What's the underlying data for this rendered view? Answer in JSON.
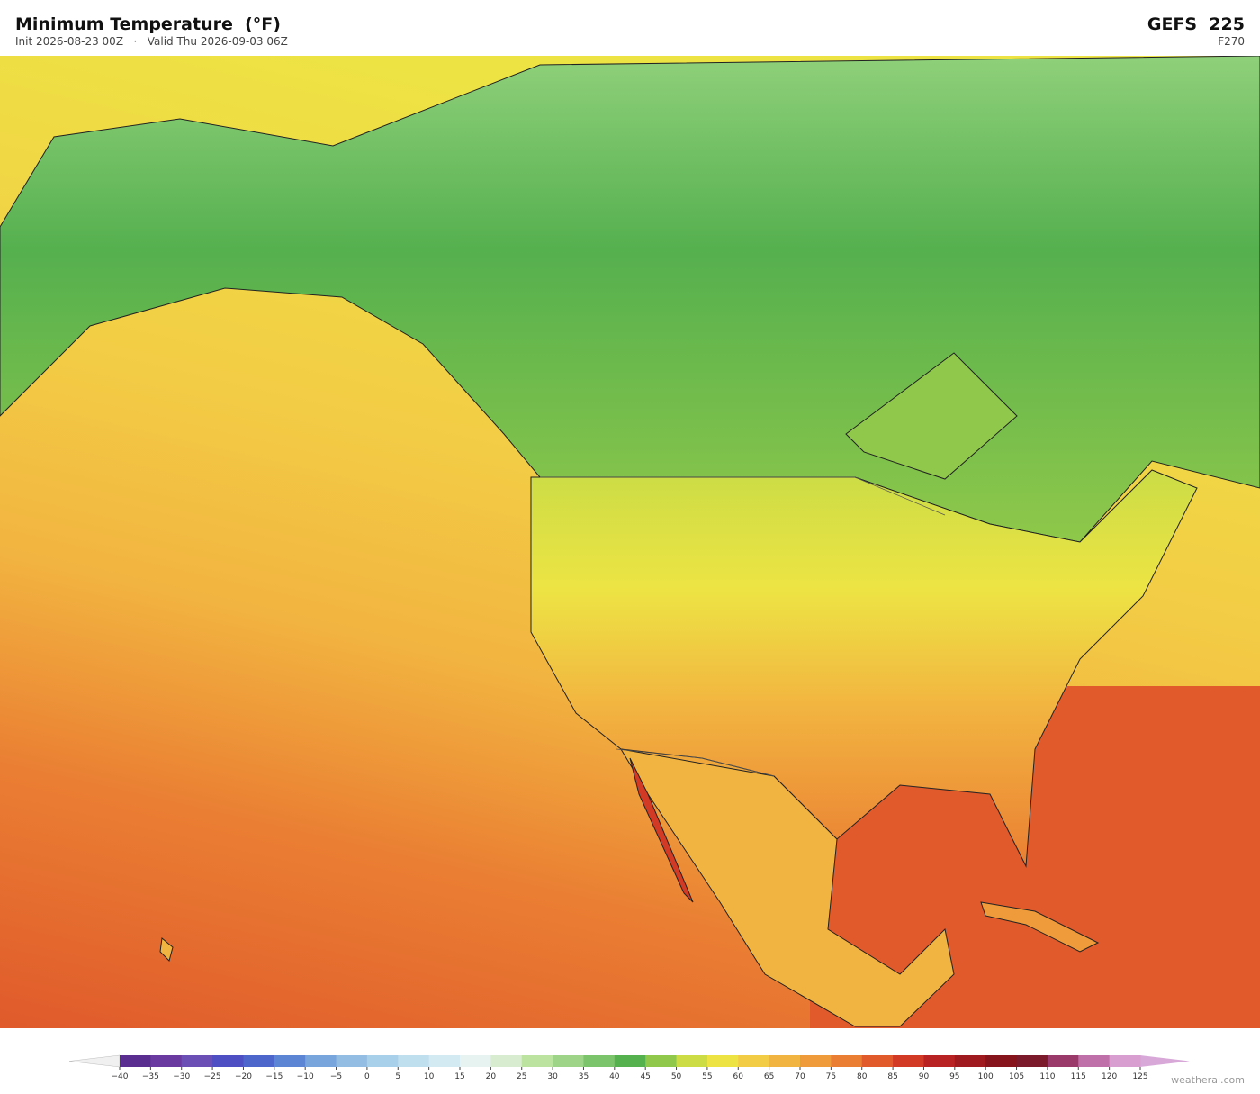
{
  "header": {
    "title": "Minimum Temperature  (°F)",
    "subtitle": "Init 2026-08-23 00Z   ·   Valid Thu 2026-09-03 06Z",
    "model": "GEFS  225",
    "forecast_hour": "F270"
  },
  "colorbar": {
    "ticks": [
      "−40",
      "−35",
      "−30",
      "−25",
      "−20",
      "−15",
      "−10",
      "−5",
      "0",
      "5",
      "10",
      "15",
      "20",
      "25",
      "30",
      "35",
      "40",
      "45",
      "50",
      "55",
      "60",
      "65",
      "70",
      "75",
      "80",
      "85",
      "90",
      "95",
      "100",
      "105",
      "110",
      "115",
      "120",
      "125"
    ],
    "colors": [
      "#5a2d91",
      "#6a3aa0",
      "#6b4fb5",
      "#4f4fc4",
      "#4c66cc",
      "#5c86d4",
      "#78a6dc",
      "#93bde3",
      "#a8d0ea",
      "#bfdfee",
      "#d4eaf2",
      "#e6f3f0",
      "#d8ecd0",
      "#bde3a0",
      "#9ed487",
      "#7bc46b",
      "#55b04e",
      "#8fc84a",
      "#cbdc45",
      "#ede444",
      "#f3cc45",
      "#f2b440",
      "#ef9b3b",
      "#ea7f33",
      "#e05a2b",
      "#d23a26",
      "#b82222",
      "#9e1a1f",
      "#85141c",
      "#7a1a2a",
      "#9a3a6a",
      "#c070a8",
      "#d99ed0"
    ],
    "under_color": "#f0f0f0",
    "over_color": "#d7a8d8"
  },
  "footer": {
    "credit": "weatherai.com"
  }
}
